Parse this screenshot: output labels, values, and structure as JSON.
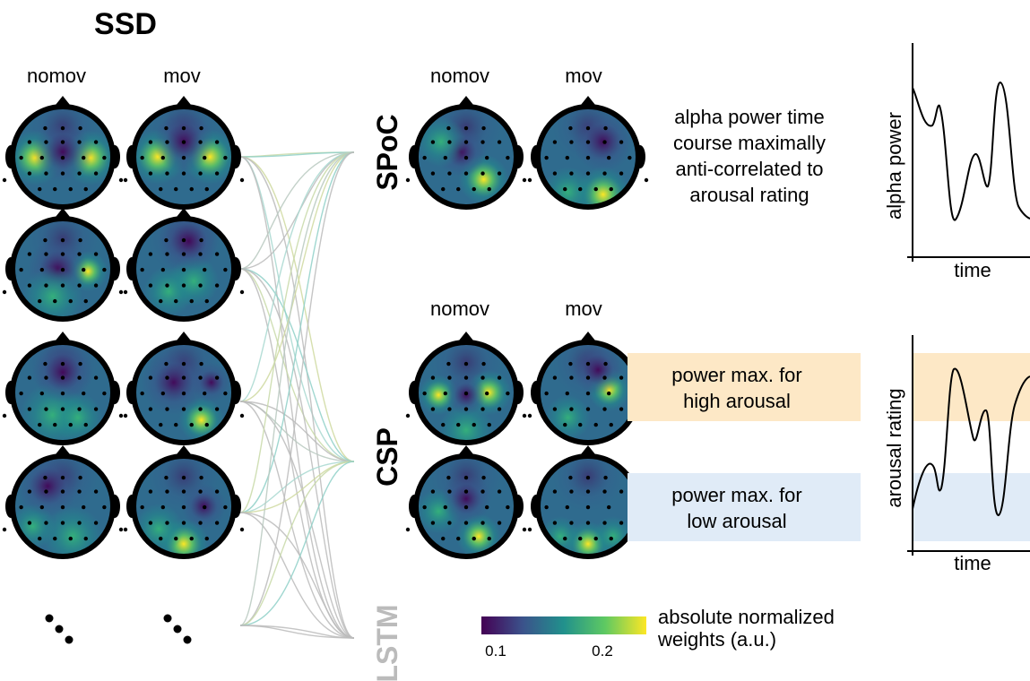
{
  "ssd": {
    "title": "SSD",
    "col_labels": [
      "nomov",
      "mov"
    ],
    "continuation": "⋱"
  },
  "spoc": {
    "label": "SPoC",
    "col_labels": [
      "nomov",
      "mov"
    ],
    "description": [
      "alpha power time",
      "course maximally",
      "anti-correlated to",
      "arousal rating"
    ]
  },
  "csp": {
    "label": "CSP",
    "col_labels": [
      "nomov",
      "mov"
    ],
    "high_box": [
      "power max. for",
      "high arousal"
    ],
    "low_box": [
      "power max. for",
      "low arousal"
    ]
  },
  "lstm": {
    "label": "LSTM"
  },
  "plot_alpha": {
    "ylabel": "alpha power",
    "xlabel": "time"
  },
  "plot_arousal": {
    "ylabel": "arousal rating",
    "xlabel": "time"
  },
  "colorbar": {
    "ticks": [
      "0.1",
      "0.2"
    ],
    "label": [
      "absolute normalized",
      "weights (a.u.)"
    ]
  },
  "colors": {
    "high_band": "#fde8c6",
    "low_band": "#e0ebf7",
    "lstm_gray": "#bbbbbb",
    "lines": [
      "#c8d9a8",
      "#8fd0c8",
      "#a8d8d0",
      "#cfd9a0",
      "#b9c9c0",
      "#bbbbbb"
    ],
    "viridis": [
      "#440154",
      "#3b528b",
      "#21918c",
      "#5ec962",
      "#fde725"
    ]
  }
}
